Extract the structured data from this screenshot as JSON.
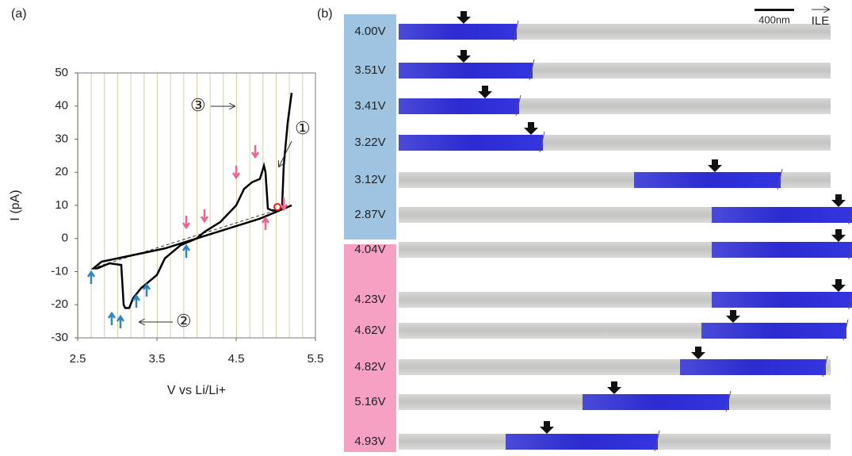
{
  "panel_labels": [
    "(a)",
    "(b)"
  ],
  "chart_data": {
    "type": "line",
    "xlabel": "V vs Li/Li+",
    "ylabel": "I (pA)",
    "xlim": [
      2.5,
      5.5
    ],
    "xticks": [
      2.5,
      3.5,
      4.5,
      5.5
    ],
    "ylim": [
      -30,
      50
    ],
    "yticks": [
      -30,
      -20,
      -10,
      0,
      10,
      20,
      30,
      40,
      50
    ],
    "annotations": [
      "①",
      "②",
      "③"
    ],
    "series": [
      {
        "color": "#000000",
        "x": [
          5.2,
          5.15,
          5.1,
          5.08,
          5.05,
          5.0,
          4.95,
          4.9,
          4.87,
          4.85,
          4.8,
          4.7,
          4.65,
          4.6,
          4.5,
          4.3,
          4.1,
          4.0,
          3.8,
          3.6,
          3.5,
          3.4,
          3.3,
          3.2,
          3.15,
          3.1,
          3.08,
          3.05,
          2.9,
          2.75,
          2.7,
          2.8,
          3.2,
          3.6,
          4.0,
          4.4,
          4.8,
          5.0,
          5.2
        ],
        "values": [
          44,
          35,
          22,
          10,
          8.5,
          8.5,
          8.5,
          9,
          20,
          22,
          18,
          17,
          16,
          15,
          10,
          5,
          2,
          0,
          -2,
          -6,
          -11,
          -13,
          -15,
          -18,
          -21,
          -21,
          -20,
          -8,
          -7.5,
          -9,
          -9,
          -7,
          -5,
          -3,
          0,
          3,
          6,
          8,
          10
        ]
      }
    ]
  },
  "images": {
    "scale_bar": "400nm",
    "direction": "ILE",
    "rows": [
      "4.00V",
      "3.51V",
      "3.41V",
      "3.22V",
      "3.12V",
      "2.87V",
      "4.04V",
      "4.23V",
      "4.62V",
      "4.82V",
      "5.16V",
      "4.93V"
    ]
  }
}
